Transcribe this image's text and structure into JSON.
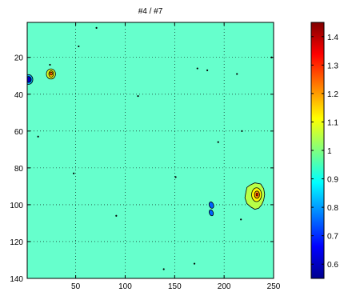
{
  "chart_data": {
    "type": "heatmap",
    "title": "#4 / #7",
    "xlabel": "",
    "ylabel": "",
    "xlim": [
      1,
      250
    ],
    "ylim": [
      140,
      1
    ],
    "y_reversed": true,
    "grid": true,
    "background_value": 0.95,
    "x_ticks": [
      50,
      100,
      150,
      200,
      250
    ],
    "y_ticks": [
      20,
      40,
      60,
      80,
      100,
      120,
      140
    ],
    "colorbar": {
      "colormap": "jet",
      "range": [
        0.55,
        1.45
      ],
      "ticks": [
        0.6,
        0.7,
        0.8,
        0.9,
        1,
        1.1,
        1.2,
        1.3,
        1.4
      ],
      "tick_labels": [
        "0.6",
        "0.7",
        "0.8",
        "0.9",
        "1",
        "1.1",
        "1.2",
        "1.3",
        "1.4"
      ]
    },
    "features": [
      {
        "kind": "low",
        "x": 2.5,
        "y": 32,
        "value": 0.6
      },
      {
        "kind": "high",
        "x": 25,
        "y": 29,
        "value": 1.25
      },
      {
        "kind": "high",
        "x": 232,
        "y": 95,
        "value": 1.2
      },
      {
        "kind": "low",
        "x": 187,
        "y": 102,
        "value": 0.75
      }
    ],
    "contour_dots": [
      {
        "x": 53,
        "y": 14
      },
      {
        "x": 71,
        "y": 4
      },
      {
        "x": 113,
        "y": 41
      },
      {
        "x": 173,
        "y": 26
      },
      {
        "x": 183,
        "y": 27
      },
      {
        "x": 213,
        "y": 29
      },
      {
        "x": 248,
        "y": 20
      },
      {
        "x": 12,
        "y": 63
      },
      {
        "x": 218,
        "y": 60
      },
      {
        "x": 91,
        "y": 106
      },
      {
        "x": 151,
        "y": 85
      },
      {
        "x": 217,
        "y": 108
      },
      {
        "x": 48,
        "y": 83
      },
      {
        "x": 139,
        "y": 135
      },
      {
        "x": 24,
        "y": 24
      },
      {
        "x": 194,
        "y": 66
      },
      {
        "x": 170,
        "y": 132
      }
    ]
  }
}
